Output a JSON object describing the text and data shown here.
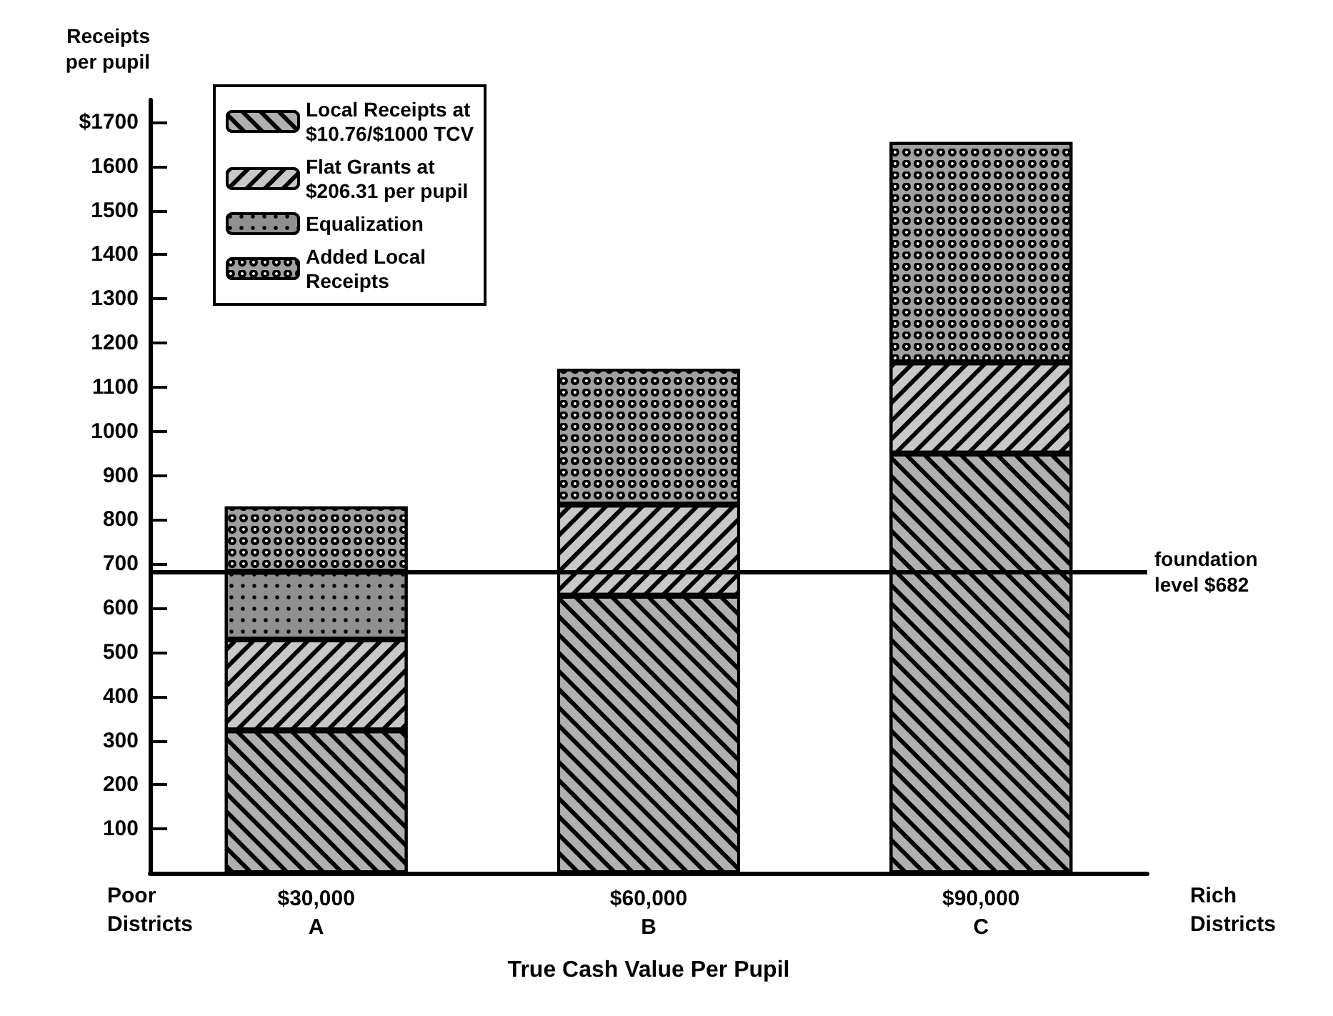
{
  "chart_data": {
    "type": "bar",
    "stacked": true,
    "xlabel": "True Cash Value Per Pupil",
    "ylabel": "Receipts\nper pupil",
    "categories": [
      "$30,000\nA",
      "$60,000\nB",
      "$90,000\nC"
    ],
    "series": [
      {
        "name": "Local Receipts at\n$10.76/$1000 TCV",
        "color": "#b0b0b0",
        "values": [
          323,
          628,
          950
        ]
      },
      {
        "name": "Flat Grants at\n$206.31 per pupil",
        "color": "#c8c8c8",
        "values": [
          206,
          206,
          206
        ]
      },
      {
        "name": "Equalization",
        "color": "#909090",
        "values": [
          153,
          null,
          null
        ]
      },
      {
        "name": "Added Local\nReceipts",
        "color": "#a0a0a0",
        "values": [
          148,
          308,
          499
        ]
      }
    ],
    "ylim": [
      0,
      1750
    ],
    "yticks": [
      100,
      200,
      300,
      400,
      500,
      600,
      700,
      800,
      900,
      1000,
      1100,
      1200,
      1300,
      1400,
      1500,
      {
        "value": 1700,
        "label": "$1700"
      },
      1600
    ],
    "ref_lines": [
      {
        "axis": "y",
        "value": 682,
        "label": "foundation\nlevel $682",
        "color": "#000000"
      }
    ],
    "annotations": [
      "Poor\nDistricts",
      "Rich\nDistricts"
    ],
    "legend": "top left",
    "grid": false
  }
}
